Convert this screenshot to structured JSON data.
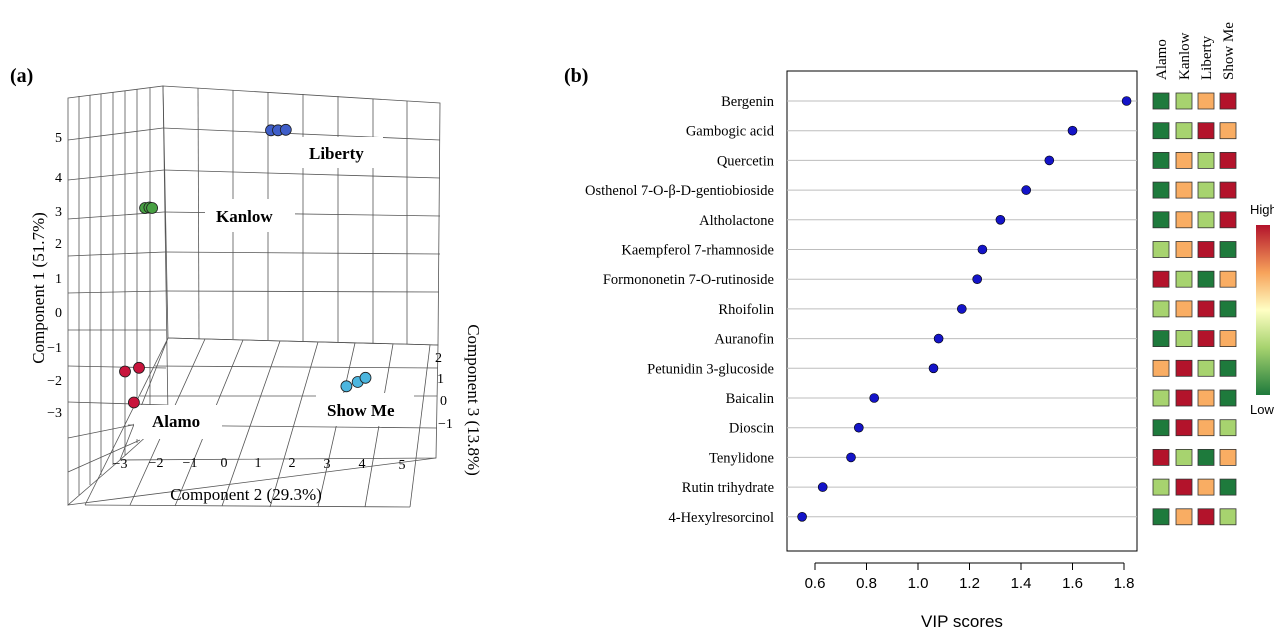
{
  "panels": {
    "a_label": "(a)",
    "b_label": "(b)"
  },
  "chart_data": [
    {
      "panel": "(a)",
      "type": "scatter",
      "scatter_3d": true,
      "title": "",
      "xlabel": "Component 2 (29.3%)",
      "ylabel": "Component 1 (51.7%)",
      "zlabel": "Component 3 (13.8%)",
      "x_ticks": [
        "−3",
        "−2",
        "−1",
        "0",
        "1",
        "2",
        "3",
        "4",
        "5"
      ],
      "y_ticks": [
        "5",
        "4",
        "3",
        "2",
        "1",
        "0",
        "−1",
        "−2",
        "−3"
      ],
      "z_ticks": [
        "2",
        "1",
        "0",
        "−1"
      ],
      "grid": true,
      "group_colors": {
        "Liberty": "#3f5ec9",
        "Kanlow": "#48a043",
        "Alamo": "#c8143c",
        "Show Me": "#4cb6df"
      },
      "group_labels": [
        "Liberty",
        "Kanlow",
        "Alamo",
        "Show Me"
      ],
      "groups": [
        {
          "name": "Liberty",
          "color": "#3f5ec9",
          "points": [
            [
              1.2,
              4.7,
              1.5
            ],
            [
              1.4,
              4.7,
              1.5
            ],
            [
              1.6,
              4.7,
              1.6
            ]
          ]
        },
        {
          "name": "Kanlow",
          "color": "#48a043",
          "points": [
            [
              -2.1,
              2.8,
              0.2
            ],
            [
              -2.0,
              2.8,
              0.3
            ],
            [
              -1.9,
              2.8,
              0.2
            ]
          ]
        },
        {
          "name": "Alamo",
          "color": "#c8143c",
          "points": [
            [
              -2.4,
              -1.4,
              -1.0
            ],
            [
              -2.0,
              -1.3,
              -1.0
            ],
            [
              -2.1,
              -2.2,
              -1.2
            ]
          ]
        },
        {
          "name": "Show Me",
          "color": "#4cb6df",
          "points": [
            [
              3.4,
              -2.1,
              1.3
            ],
            [
              3.7,
              -2.0,
              1.4
            ],
            [
              3.9,
              -1.9,
              1.5
            ]
          ]
        }
      ]
    },
    {
      "panel": "(b)",
      "type": "scatter",
      "title": "",
      "xlabel": "VIP scores",
      "ylabel": "",
      "xlim": [
        0.5,
        1.85
      ],
      "x_ticks": [
        "0.6",
        "0.8",
        "1.0",
        "1.2",
        "1.4",
        "1.6",
        "1.8"
      ],
      "x_tick_values": [
        0.6,
        0.8,
        1.0,
        1.2,
        1.4,
        1.6,
        1.8
      ],
      "grid": true,
      "marker_color": "#1414c8",
      "compounds": [
        "Bergenin",
        "Gambogic acid",
        "Quercetin",
        "Osthenol 7-O-β-D-gentiobioside",
        "Altholactone",
        "Kaempferol 7-rhamnoside",
        "Formononetin 7-O-rutinoside",
        "Rhoifolin",
        "Auranofin",
        "Petunidin 3-glucoside",
        "Baicalin",
        "Dioscin",
        "Tenylidone",
        "Rutin trihydrate",
        "4-Hexylresorcinol"
      ],
      "vip_scores": [
        1.81,
        1.6,
        1.51,
        1.42,
        1.32,
        1.25,
        1.23,
        1.17,
        1.08,
        1.06,
        0.83,
        0.77,
        0.74,
        0.63,
        0.55
      ],
      "heatmap": {
        "columns": [
          "Alamo",
          "Kanlow",
          "Liberty",
          "Show Me"
        ],
        "level_colors": {
          "low": "#1e7a3c",
          "mid_low": "#a7d36f",
          "mid_high": "#f9ad63",
          "high": "#b3132b"
        },
        "rows": [
          [
            "low",
            "mid_low",
            "mid_high",
            "high"
          ],
          [
            "low",
            "mid_low",
            "high",
            "mid_high"
          ],
          [
            "low",
            "mid_high",
            "mid_low",
            "high"
          ],
          [
            "low",
            "mid_high",
            "mid_low",
            "high"
          ],
          [
            "low",
            "mid_high",
            "mid_low",
            "high"
          ],
          [
            "mid_low",
            "mid_high",
            "high",
            "low"
          ],
          [
            "high",
            "mid_low",
            "low",
            "mid_high"
          ],
          [
            "mid_low",
            "mid_high",
            "high",
            "low"
          ],
          [
            "low",
            "mid_low",
            "high",
            "mid_high"
          ],
          [
            "mid_high",
            "high",
            "mid_low",
            "low"
          ],
          [
            "mid_low",
            "high",
            "mid_high",
            "low"
          ],
          [
            "low",
            "high",
            "mid_high",
            "mid_low"
          ],
          [
            "high",
            "mid_low",
            "low",
            "mid_high"
          ],
          [
            "mid_low",
            "high",
            "mid_high",
            "low"
          ],
          [
            "low",
            "mid_high",
            "high",
            "mid_low"
          ]
        ]
      },
      "colorbar": {
        "high_label": "High",
        "low_label": "Low"
      }
    }
  ]
}
